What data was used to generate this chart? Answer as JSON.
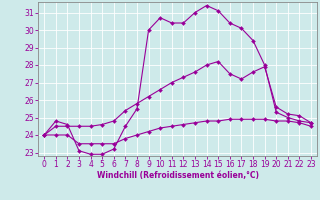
{
  "xlabel": "Windchill (Refroidissement éolien,°C)",
  "bg_color": "#ceeaea",
  "line_color": "#990099",
  "grid_color": "#aadddd",
  "xlim": [
    -0.5,
    23.5
  ],
  "ylim": [
    22.8,
    31.6
  ],
  "yticks": [
    23,
    24,
    25,
    26,
    27,
    28,
    29,
    30,
    31
  ],
  "xticks": [
    0,
    1,
    2,
    3,
    4,
    5,
    6,
    7,
    8,
    9,
    10,
    11,
    12,
    13,
    14,
    15,
    16,
    17,
    18,
    19,
    20,
    21,
    22,
    23
  ],
  "line1_x": [
    0,
    1,
    2,
    3,
    4,
    5,
    6,
    7,
    8,
    9,
    10,
    11,
    12,
    13,
    14,
    15,
    16,
    17,
    18,
    19,
    20,
    21,
    22,
    23
  ],
  "line1_y": [
    24.0,
    24.8,
    24.6,
    23.1,
    22.9,
    22.9,
    23.2,
    24.5,
    25.5,
    30.0,
    30.7,
    30.4,
    30.4,
    31.0,
    31.4,
    31.1,
    30.4,
    30.1,
    29.4,
    28.0,
    25.3,
    25.0,
    24.8,
    24.7
  ],
  "line2_x": [
    0,
    1,
    2,
    3,
    4,
    5,
    6,
    7,
    8,
    9,
    10,
    11,
    12,
    13,
    14,
    15,
    16,
    17,
    18,
    19,
    20,
    21,
    22,
    23
  ],
  "line2_y": [
    24.0,
    24.5,
    24.5,
    24.5,
    24.5,
    24.6,
    24.8,
    25.4,
    25.8,
    26.2,
    26.6,
    27.0,
    27.3,
    27.6,
    28.0,
    28.2,
    27.5,
    27.2,
    27.6,
    27.9,
    25.6,
    25.2,
    25.1,
    24.7
  ],
  "line3_x": [
    0,
    1,
    2,
    3,
    4,
    5,
    6,
    7,
    8,
    9,
    10,
    11,
    12,
    13,
    14,
    15,
    16,
    17,
    18,
    19,
    20,
    21,
    22,
    23
  ],
  "line3_y": [
    24.0,
    24.0,
    24.0,
    23.5,
    23.5,
    23.5,
    23.5,
    23.8,
    24.0,
    24.2,
    24.4,
    24.5,
    24.6,
    24.7,
    24.8,
    24.8,
    24.9,
    24.9,
    24.9,
    24.9,
    24.8,
    24.8,
    24.7,
    24.5
  ],
  "tick_fontsize": 5.5,
  "xlabel_fontsize": 5.5,
  "marker_size": 2.0,
  "linewidth": 0.8
}
